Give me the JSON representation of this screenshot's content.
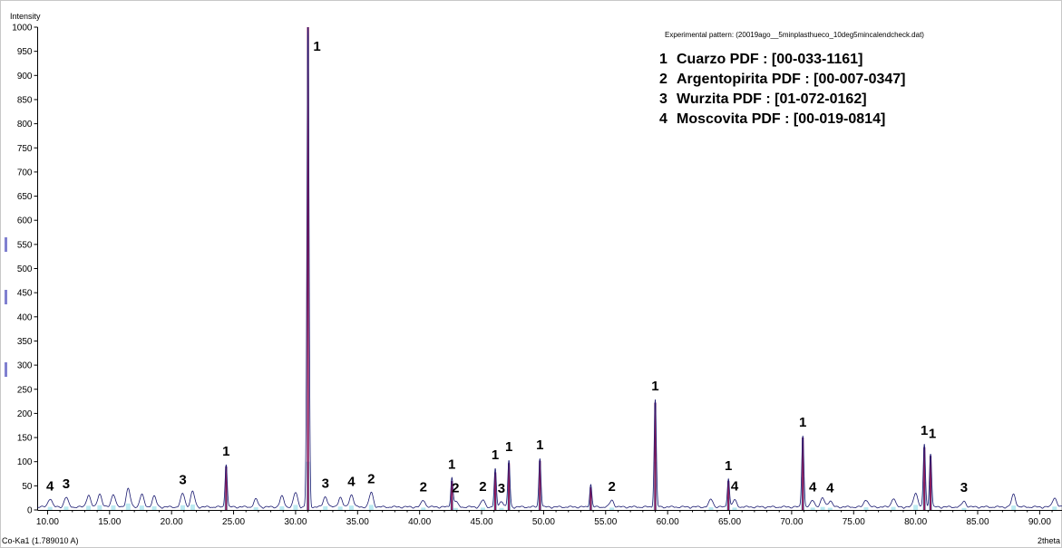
{
  "chart_data": {
    "type": "line",
    "y_axis_title": "Intensity",
    "x_axis_title": "2theta",
    "radiation_label": "Co-Ka1 (1.789010 A)",
    "experimental_label": "Experimental pattern: (20019ago__5minplasthueco_10deg5mincalendcheck.dat)",
    "xlim": [
      9.2,
      91.8
    ],
    "ylim": [
      0,
      1000
    ],
    "x_ticks": [
      10,
      15,
      20,
      25,
      30,
      35,
      40,
      45,
      50,
      55,
      60,
      65,
      70,
      75,
      80,
      85,
      90
    ],
    "x_tick_labels": [
      "10.00",
      "15.00",
      "20.00",
      "25.00",
      "30.00",
      "35.00",
      "40.00",
      "45.00",
      "50.00",
      "55.00",
      "60.00",
      "65.00",
      "70.00",
      "75.00",
      "80.00",
      "85.00",
      "90.00"
    ],
    "y_ticks": [
      0,
      50,
      100,
      150,
      200,
      250,
      300,
      350,
      400,
      450,
      500,
      550,
      600,
      650,
      700,
      750,
      800,
      850,
      900,
      950,
      1000
    ],
    "y_tick_labels": [
      "0",
      "50",
      "100",
      "150",
      "200",
      "250",
      "300",
      "350",
      "400",
      "450",
      "500",
      "550",
      "600",
      "650",
      "700",
      "750",
      "800",
      "850",
      "900",
      "950",
      "1000"
    ],
    "grid": false,
    "colors": {
      "pattern": "#191970",
      "peak": "#8b1a5c",
      "reference": "#40c4d8"
    },
    "legend": {
      "placement": "top-right",
      "entries": [
        {
          "num": "1",
          "text": "Cuarzo PDF : [00-033-1161]"
        },
        {
          "num": "2",
          "text": "Argentopirita PDF : [00-007-0347]"
        },
        {
          "num": "3",
          "text": "Wurzita PDF : [01-072-0162]"
        },
        {
          "num": "4",
          "text": "Moscovita PDF : [00-019-0814]"
        }
      ]
    },
    "peaks": [
      {
        "x": 24.4,
        "y": 90,
        "phase": "1",
        "strong": true
      },
      {
        "x": 31.0,
        "y": 1000,
        "phase": "1",
        "strong": true
      },
      {
        "x": 42.6,
        "y": 60,
        "phase": "1",
        "strong": true
      },
      {
        "x": 46.1,
        "y": 78,
        "phase": "1",
        "strong": true
      },
      {
        "x": 47.2,
        "y": 97,
        "phase": "1",
        "strong": true
      },
      {
        "x": 49.7,
        "y": 102,
        "phase": "1",
        "strong": true
      },
      {
        "x": 53.8,
        "y": 47,
        "phase": "",
        "strong": true
      },
      {
        "x": 59.0,
        "y": 222,
        "phase": "1",
        "strong": true
      },
      {
        "x": 64.9,
        "y": 60,
        "phase": "1",
        "strong": true
      },
      {
        "x": 70.9,
        "y": 150,
        "phase": "1",
        "strong": true
      },
      {
        "x": 80.7,
        "y": 130,
        "phase": "1",
        "strong": true
      },
      {
        "x": 81.2,
        "y": 112,
        "phase": "1",
        "strong": true
      },
      {
        "x": 10.2,
        "y": 18,
        "phase": "4",
        "strong": false
      },
      {
        "x": 11.5,
        "y": 20,
        "phase": "3",
        "strong": false
      },
      {
        "x": 13.3,
        "y": 25,
        "phase": "",
        "strong": false
      },
      {
        "x": 14.2,
        "y": 28,
        "phase": "",
        "strong": false
      },
      {
        "x": 15.3,
        "y": 27,
        "phase": "",
        "strong": false
      },
      {
        "x": 16.5,
        "y": 38,
        "phase": "",
        "strong": false
      },
      {
        "x": 17.6,
        "y": 26,
        "phase": "",
        "strong": false
      },
      {
        "x": 18.6,
        "y": 22,
        "phase": "",
        "strong": false
      },
      {
        "x": 20.9,
        "y": 28,
        "phase": "3",
        "strong": false
      },
      {
        "x": 21.7,
        "y": 32,
        "phase": "",
        "strong": false
      },
      {
        "x": 26.8,
        "y": 16,
        "phase": "",
        "strong": false
      },
      {
        "x": 28.9,
        "y": 22,
        "phase": "",
        "strong": false
      },
      {
        "x": 30.0,
        "y": 30,
        "phase": "",
        "strong": false
      },
      {
        "x": 32.4,
        "y": 22,
        "phase": "3",
        "strong": false
      },
      {
        "x": 33.6,
        "y": 20,
        "phase": "",
        "strong": false
      },
      {
        "x": 34.5,
        "y": 26,
        "phase": "4",
        "strong": false
      },
      {
        "x": 36.1,
        "y": 30,
        "phase": "2",
        "strong": false
      },
      {
        "x": 40.3,
        "y": 14,
        "phase": "2",
        "strong": false
      },
      {
        "x": 42.9,
        "y": 12,
        "phase": "2",
        "strong": false
      },
      {
        "x": 45.1,
        "y": 14,
        "phase": "2",
        "strong": false
      },
      {
        "x": 46.6,
        "y": 12,
        "phase": "3",
        "strong": false
      },
      {
        "x": 55.5,
        "y": 14,
        "phase": "2",
        "strong": false
      },
      {
        "x": 63.5,
        "y": 16,
        "phase": "",
        "strong": false
      },
      {
        "x": 65.4,
        "y": 14,
        "phase": "4",
        "strong": false
      },
      {
        "x": 71.7,
        "y": 14,
        "phase": "4",
        "strong": false
      },
      {
        "x": 72.5,
        "y": 18,
        "phase": "",
        "strong": false
      },
      {
        "x": 73.1,
        "y": 13,
        "phase": "4",
        "strong": false
      },
      {
        "x": 76.0,
        "y": 16,
        "phase": "",
        "strong": false
      },
      {
        "x": 78.2,
        "y": 18,
        "phase": "",
        "strong": false
      },
      {
        "x": 80.0,
        "y": 30,
        "phase": "",
        "strong": false
      },
      {
        "x": 83.9,
        "y": 12,
        "phase": "3",
        "strong": false
      },
      {
        "x": 87.9,
        "y": 26,
        "phase": "",
        "strong": false
      },
      {
        "x": 91.2,
        "y": 20,
        "phase": "",
        "strong": false
      }
    ]
  }
}
